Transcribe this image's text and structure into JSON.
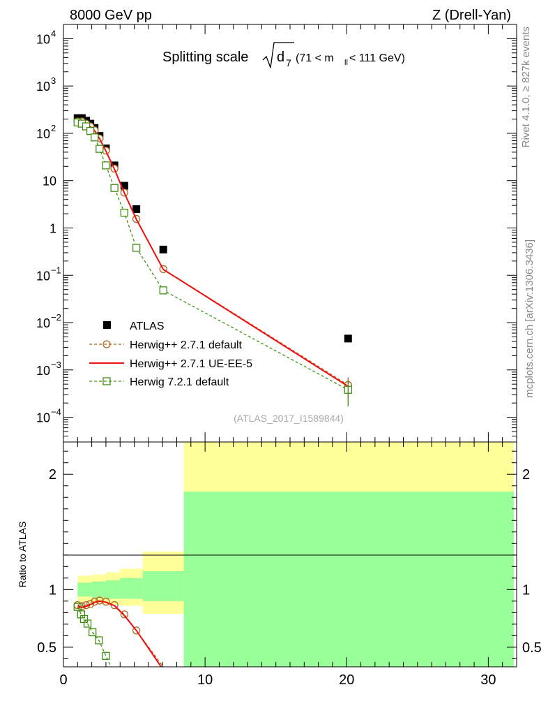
{
  "header": {
    "left": "8000 GeV pp",
    "right": "Z (Drell-Yan)"
  },
  "side_text": {
    "rivet": "Rivet 4.1.0, ≥ 827k events",
    "source": "mcplots.cern.ch [arXiv:1306.3436]"
  },
  "chart_data": [
    {
      "type": "scatter",
      "panel": "main",
      "title": "Splitting scale",
      "title_sqrt": "d",
      "title_sub": "7",
      "title_range": "(71 < m",
      "title_range_sub": "ll",
      "title_range_end": " < 111 GeV)",
      "yscale": "log",
      "xlim": [
        0,
        32
      ],
      "ylim": [
        3e-05,
        20000
      ],
      "watermark": "(ATLAS_2017_I1589844)",
      "ytick_labels": [
        {
          "v": 10000,
          "base": "10",
          "exp": "4"
        },
        {
          "v": 1000,
          "base": "10",
          "exp": "3"
        },
        {
          "v": 100,
          "base": "10",
          "exp": "2"
        },
        {
          "v": 10,
          "base": "10",
          "exp": ""
        },
        {
          "v": 1,
          "base": "1",
          "exp": ""
        },
        {
          "v": 0.1,
          "base": "10",
          "exp": "−1"
        },
        {
          "v": 0.01,
          "base": "10",
          "exp": "−2"
        },
        {
          "v": 0.001,
          "base": "10",
          "exp": "−3"
        },
        {
          "v": 0.0001,
          "base": "10",
          "exp": "−4"
        }
      ],
      "legend_position": "bottom-left",
      "series": [
        {
          "name": "ATLAS",
          "style": "data",
          "color": "#000000",
          "x": [
            1.0,
            1.3,
            1.6,
            1.9,
            2.2,
            2.55,
            3.0,
            3.6,
            4.3,
            5.15,
            7.05,
            20.1
          ],
          "y": [
            210,
            210,
            185,
            160,
            130,
            88,
            48,
            21,
            7.8,
            2.5,
            0.35,
            0.0046
          ]
        },
        {
          "name": "Herwig++ 2.7.1 default",
          "style": "dashed-circle",
          "color": "#b0651e",
          "x": [
            1.0,
            1.3,
            1.6,
            1.9,
            2.2,
            2.55,
            3.0,
            3.6,
            4.3,
            5.15,
            7.05,
            20.1
          ],
          "y": [
            178,
            178,
            160,
            140,
            116,
            78,
            43,
            18,
            5.6,
            1.55,
            0.135,
            0.00048
          ]
        },
        {
          "name": "Herwig++ 2.7.1 UE-EE-5",
          "style": "solid",
          "color": "#ee1111",
          "x": [
            1.0,
            1.3,
            1.6,
            1.9,
            2.2,
            2.55,
            3.0,
            3.6,
            4.3,
            5.15,
            7.05,
            20.1
          ],
          "y": [
            176,
            176,
            158,
            138,
            114,
            77,
            42,
            17.5,
            5.5,
            1.52,
            0.133,
            0.00045
          ]
        },
        {
          "name": "Herwig 7.2.1 default",
          "style": "dashed-square",
          "color": "#3e8f12",
          "x": [
            1.0,
            1.3,
            1.6,
            1.9,
            2.2,
            2.55,
            3.0,
            3.6,
            4.3,
            5.15,
            7.05,
            20.1
          ],
          "y": [
            170,
            160,
            140,
            112,
            82,
            47,
            21,
            7.0,
            2.1,
            0.38,
            0.048,
            0.00038
          ]
        }
      ]
    },
    {
      "type": "line",
      "panel": "ratio",
      "ylabel": "Ratio to ATLAS",
      "xlim": [
        0,
        32
      ],
      "ylim": [
        0.33,
        2.28
      ],
      "x_ticks": [
        0,
        10,
        20,
        30
      ],
      "y_ticks": [
        0.5,
        1,
        2
      ],
      "bands": {
        "edges": [
          1.0,
          2.0,
          3.0,
          4.0,
          5.6,
          8.5,
          31.8
        ],
        "yellow_lo": [
          0.89,
          0.88,
          0.87,
          0.86,
          0.79,
          0.33
        ],
        "yellow_hi": [
          1.12,
          1.13,
          1.15,
          1.18,
          1.33,
          2.28
        ],
        "green_lo": [
          0.94,
          0.93,
          0.92,
          0.92,
          0.9,
          0.33
        ],
        "green_hi": [
          1.06,
          1.07,
          1.08,
          1.1,
          1.16,
          1.85
        ]
      },
      "series": [
        {
          "name": "Herwig++ 2.7.1 default",
          "style": "dashed-circle",
          "color": "#b0651e",
          "x": [
            1.0,
            1.3,
            1.6,
            1.9,
            2.2,
            2.55,
            3.0,
            3.6,
            4.3,
            5.15,
            7.05
          ],
          "y": [
            0.865,
            0.855,
            0.865,
            0.875,
            0.895,
            0.905,
            0.895,
            0.865,
            0.785,
            0.645,
            0.33
          ]
        },
        {
          "name": "Herwig++ 2.7.1 UE-EE-5",
          "style": "solid",
          "color": "#ee1111",
          "x": [
            1.0,
            1.3,
            1.6,
            1.9,
            2.2,
            2.55,
            3.0,
            3.6,
            4.3,
            5.15,
            6.9
          ],
          "y": [
            0.855,
            0.845,
            0.855,
            0.87,
            0.89,
            0.9,
            0.89,
            0.86,
            0.775,
            0.645,
            0.33
          ]
        },
        {
          "name": "Herwig 7.2.1 default",
          "style": "dashed-square",
          "color": "#3e8f12",
          "x": [
            1.0,
            1.25,
            1.45,
            1.7,
            2.05,
            2.5,
            3.0,
            3.35
          ],
          "y": [
            0.85,
            0.785,
            0.745,
            0.705,
            0.63,
            0.56,
            0.425,
            0.33
          ]
        }
      ]
    }
  ]
}
